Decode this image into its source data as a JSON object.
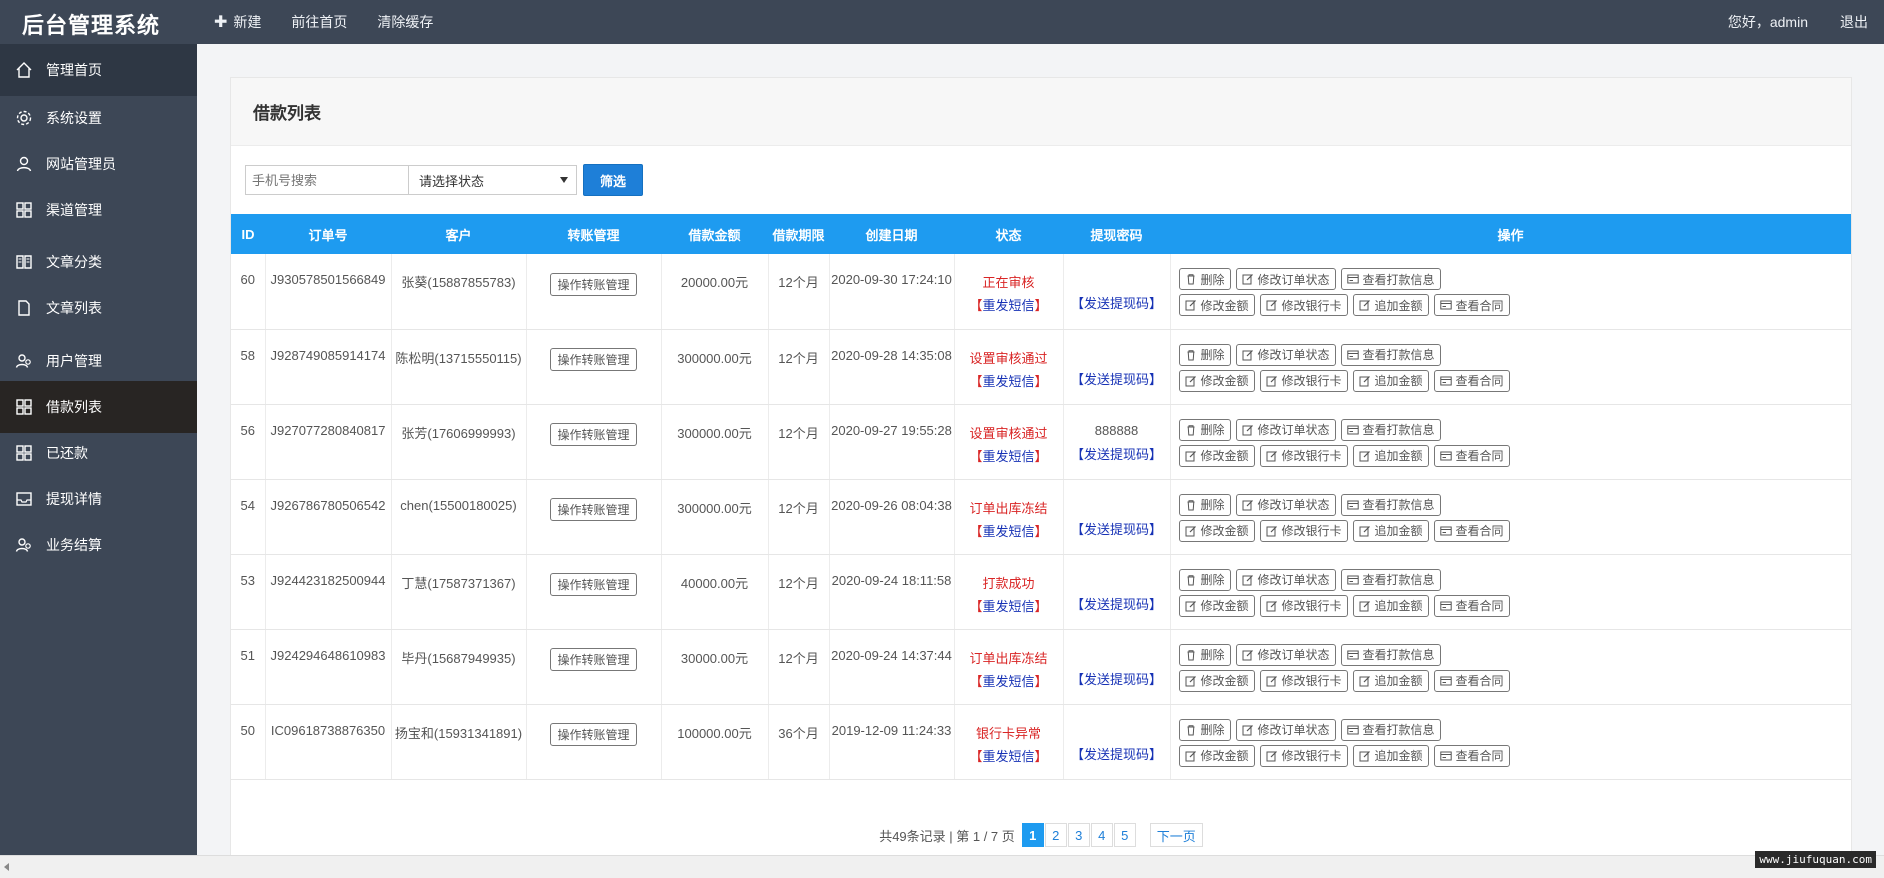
{
  "app": {
    "title": "后台管理系统",
    "nav": [
      {
        "label": "新建",
        "icon": "plus-icon"
      },
      {
        "label": "前往首页"
      },
      {
        "label": "清除缓存"
      }
    ],
    "greeting": "您好，admin",
    "logout": "退出"
  },
  "sidebar": {
    "items": [
      {
        "label": "管理首页",
        "icon": "home-icon"
      },
      {
        "label": "系统设置",
        "icon": "gear-icon"
      },
      {
        "label": "网站管理员",
        "icon": "user-icon"
      },
      {
        "label": "渠道管理",
        "icon": "grid-icon"
      },
      {
        "label": "文章分类",
        "icon": "book-icon"
      },
      {
        "label": "文章列表",
        "icon": "file-icon"
      },
      {
        "label": "用户管理",
        "icon": "users-icon"
      },
      {
        "label": "借款列表",
        "icon": "grid-icon",
        "active": true
      },
      {
        "label": "已还款",
        "icon": "grid-icon"
      },
      {
        "label": "提现详情",
        "icon": "inbox-icon"
      },
      {
        "label": "业务结算",
        "icon": "users-icon"
      }
    ]
  },
  "panel": {
    "title": "借款列表"
  },
  "filter": {
    "phone_placeholder": "手机号搜索",
    "status_selected": "请选择状态",
    "submit": "筛选"
  },
  "table": {
    "headers": [
      "ID",
      "订单号",
      "客户",
      "转账管理",
      "借款金额",
      "借款期限",
      "创建日期",
      "状态",
      "提现密码",
      "操作"
    ],
    "transfer_button": "操作转账管理",
    "resend_sms": "【重发短信】",
    "send_code": "【发送提现码】",
    "op_buttons_row1": [
      "删除",
      "修改订单状态",
      "查看打款信息"
    ],
    "op_buttons_row2": [
      "修改金额",
      "修改银行卡",
      "追加金额",
      "查看合同"
    ],
    "rows": [
      {
        "id": "60",
        "order": "J930578501566849",
        "customer": "张葵(15887855783)",
        "amount": "20000.00元",
        "term": "12个月",
        "date": "2020-09-30 17:24:10",
        "status": "正在审核",
        "code": ""
      },
      {
        "id": "58",
        "order": "J928749085914174",
        "customer": "陈松明(13715550115)",
        "amount": "300000.00元",
        "term": "12个月",
        "date": "2020-09-28 14:35:08",
        "status": "设置审核通过",
        "code": ""
      },
      {
        "id": "56",
        "order": "J927077280840817",
        "customer": "张芳(17606999993)",
        "amount": "300000.00元",
        "term": "12个月",
        "date": "2020-09-27 19:55:28",
        "status": "设置审核通过",
        "code": "888888"
      },
      {
        "id": "54",
        "order": "J926786780506542",
        "customer": "chen(15500180025)",
        "amount": "300000.00元",
        "term": "12个月",
        "date": "2020-09-26 08:04:38",
        "status": "订单出库冻结",
        "code": ""
      },
      {
        "id": "53",
        "order": "J924423182500944",
        "customer": "丁慧(17587371367)",
        "amount": "40000.00元",
        "term": "12个月",
        "date": "2020-09-24 18:11:58",
        "status": "打款成功",
        "code": ""
      },
      {
        "id": "51",
        "order": "J924294648610983",
        "customer": "毕丹(15687949935)",
        "amount": "30000.00元",
        "term": "12个月",
        "date": "2020-09-24 14:37:44",
        "status": "订单出库冻结",
        "code": ""
      },
      {
        "id": "50",
        "order": "IC09618738876350",
        "customer": "扬宝和(15931341891)",
        "amount": "100000.00元",
        "term": "36个月",
        "date": "2019-12-09 11:24:33",
        "status": "银行卡异常",
        "code": ""
      }
    ]
  },
  "pager": {
    "info": "共49条记录 | 第 1 / 7 页",
    "pages": [
      "1",
      "2",
      "3",
      "4",
      "5"
    ],
    "current": "1",
    "next": "下一页"
  },
  "watermark": "www.jiufuquan.com"
}
